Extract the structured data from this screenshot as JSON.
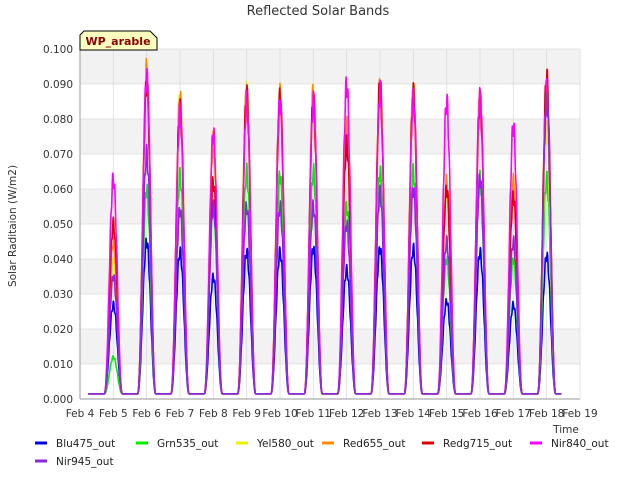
{
  "chart_data": {
    "type": "line",
    "title": "Reflected Solar Bands",
    "xlabel": "Time",
    "ylabel": "Solar Raditaion (W/m2)",
    "annotation": "WP_arable",
    "xlim": [
      4,
      19
    ],
    "ylim": [
      0,
      0.1
    ],
    "x_ticks": [
      "Feb 4",
      "Feb 5",
      "Feb 6",
      "Feb 7",
      "Feb 8",
      "Feb 9",
      "Feb 10",
      "Feb 11",
      "Feb 12",
      "Feb 13",
      "Feb 14",
      "Feb 15",
      "Feb 16",
      "Feb 17",
      "Feb 18",
      "Feb 19"
    ],
    "y_ticks": [
      "0.000",
      "0.010",
      "0.020",
      "0.030",
      "0.040",
      "0.050",
      "0.060",
      "0.070",
      "0.080",
      "0.090",
      "0.100"
    ],
    "grid": true,
    "legend_position": "bottom",
    "day_centers": [
      5.0,
      6.0,
      7.0,
      8.0,
      9.0,
      10.0,
      11.0,
      12.0,
      13.0,
      14.0,
      15.0,
      16.0,
      17.0,
      18.0
    ],
    "baseline": 0.0015,
    "series": [
      {
        "name": "Blu475_out",
        "color": "#0000ee",
        "peaks": [
          0.027,
          0.045,
          0.042,
          0.035,
          0.042,
          0.042,
          0.043,
          0.037,
          0.043,
          0.043,
          0.028,
          0.042,
          0.027,
          0.041
        ]
      },
      {
        "name": "Grn535_out",
        "color": "#00ee00",
        "peaks": [
          0.012,
          0.06,
          0.064,
          0.055,
          0.065,
          0.064,
          0.065,
          0.055,
          0.065,
          0.065,
          0.04,
          0.063,
          0.04,
          0.063
        ]
      },
      {
        "name": "Yel580_out",
        "color": "#eeee00",
        "peaks": [
          0.04,
          0.093,
          0.085,
          0.072,
          0.088,
          0.086,
          0.087,
          0.077,
          0.087,
          0.087,
          0.06,
          0.086,
          0.06,
          0.077
        ]
      },
      {
        "name": "Red655_out",
        "color": "#ff8c00",
        "peaks": [
          0.045,
          0.094,
          0.086,
          0.074,
          0.088,
          0.087,
          0.088,
          0.078,
          0.089,
          0.088,
          0.062,
          0.086,
          0.062,
          0.09
        ]
      },
      {
        "name": "Redg715_out",
        "color": "#dd0000",
        "peaks": [
          0.05,
          0.09,
          0.083,
          0.062,
          0.087,
          0.086,
          0.085,
          0.073,
          0.09,
          0.087,
          0.06,
          0.085,
          0.058,
          0.092
        ]
      },
      {
        "name": "Nir840_out",
        "color": "#ff00ff",
        "peaks": [
          0.063,
          0.092,
          0.082,
          0.076,
          0.085,
          0.085,
          0.085,
          0.09,
          0.088,
          0.086,
          0.085,
          0.086,
          0.078,
          0.088
        ]
      },
      {
        "name": "Nir945_out",
        "color": "#8a2be2",
        "peaks": [
          0.035,
          0.07,
          0.054,
          0.055,
          0.055,
          0.055,
          0.055,
          0.05,
          0.059,
          0.06,
          0.045,
          0.063,
          0.045,
          0.085
        ]
      }
    ]
  }
}
